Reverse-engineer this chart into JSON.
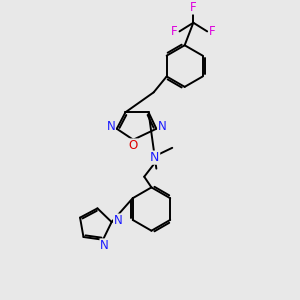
{
  "background_color": "#e8e8e8",
  "fig_size": [
    3.0,
    3.0
  ],
  "dpi": 100,
  "atom_colors": {
    "C": "#000000",
    "N": "#1a1aff",
    "O": "#dd0000",
    "F": "#dd00dd",
    "H": "#000000"
  },
  "bond_color": "#000000",
  "bond_width": 1.4,
  "font_size_atom": 8.5,
  "font_size_cf3": 8.0
}
